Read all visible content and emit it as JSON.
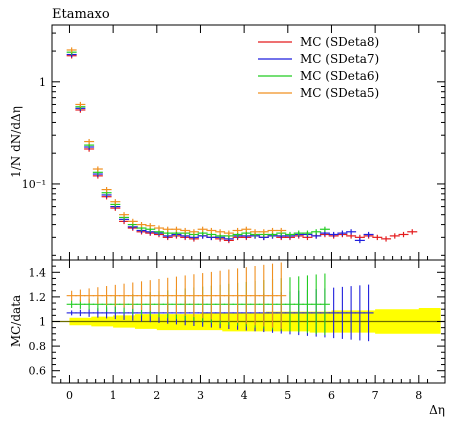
{
  "chart_data": [
    {
      "type": "scatter",
      "title": "Etamaxo",
      "ylabel": "1/N dN/dΔη",
      "yscale": "log",
      "xlim": [
        -0.4,
        8.6
      ],
      "ylim": [
        0.018,
        3.6
      ],
      "y_ticks": [
        {
          "value": 0.1,
          "label": "10⁻¹"
        },
        {
          "value": 1,
          "label": "1"
        }
      ],
      "legend_position": "top-right",
      "series": [
        {
          "name": "MC (SDeta8)",
          "color": "#e41a1c",
          "x": [
            0.05,
            0.25,
            0.45,
            0.65,
            0.85,
            1.05,
            1.25,
            1.45,
            1.65,
            1.85,
            2.05,
            2.25,
            2.45,
            2.65,
            2.85,
            3.05,
            3.25,
            3.45,
            3.65,
            3.85,
            4.05,
            4.25,
            4.45,
            4.65,
            4.85,
            5.05,
            5.25,
            5.45,
            5.65,
            5.85,
            6.05,
            6.25,
            6.45,
            6.65,
            6.85,
            7.05,
            7.25,
            7.45,
            7.65,
            7.85
          ],
          "y": [
            1.8,
            0.53,
            0.22,
            0.12,
            0.075,
            0.058,
            0.043,
            0.037,
            0.034,
            0.033,
            0.032,
            0.03,
            0.031,
            0.03,
            0.029,
            0.031,
            0.03,
            0.029,
            0.028,
            0.03,
            0.03,
            0.031,
            0.03,
            0.031,
            0.03,
            0.03,
            0.031,
            0.03,
            0.031,
            0.032,
            0.031,
            0.032,
            0.031,
            0.03,
            0.031,
            0.03,
            0.029,
            0.031,
            0.032,
            0.034
          ]
        },
        {
          "name": "MC (SDeta7)",
          "color": "#1f1fdd",
          "x": [
            0.05,
            0.25,
            0.45,
            0.65,
            0.85,
            1.05,
            1.25,
            1.45,
            1.65,
            1.85,
            2.05,
            2.25,
            2.45,
            2.65,
            2.85,
            3.05,
            3.25,
            3.45,
            3.65,
            3.85,
            4.05,
            4.25,
            4.45,
            4.65,
            4.85,
            5.05,
            5.25,
            5.45,
            5.65,
            5.85,
            6.05,
            6.25,
            6.45,
            6.65,
            6.85
          ],
          "y": [
            1.85,
            0.55,
            0.23,
            0.125,
            0.078,
            0.06,
            0.045,
            0.038,
            0.035,
            0.034,
            0.033,
            0.031,
            0.032,
            0.031,
            0.03,
            0.031,
            0.03,
            0.03,
            0.029,
            0.031,
            0.031,
            0.031,
            0.03,
            0.031,
            0.031,
            0.031,
            0.032,
            0.032,
            0.031,
            0.033,
            0.032,
            0.033,
            0.034,
            0.028,
            0.032
          ]
        },
        {
          "name": "MC (SDeta6)",
          "color": "#22cc22",
          "x": [
            0.05,
            0.25,
            0.45,
            0.65,
            0.85,
            1.05,
            1.25,
            1.45,
            1.65,
            1.85,
            2.05,
            2.25,
            2.45,
            2.65,
            2.85,
            3.05,
            3.25,
            3.45,
            3.65,
            3.85,
            4.05,
            4.25,
            4.45,
            4.65,
            4.85,
            5.05,
            5.25,
            5.45,
            5.65,
            5.85
          ],
          "y": [
            1.95,
            0.57,
            0.24,
            0.13,
            0.082,
            0.063,
            0.047,
            0.04,
            0.037,
            0.036,
            0.034,
            0.033,
            0.033,
            0.033,
            0.032,
            0.033,
            0.032,
            0.031,
            0.031,
            0.032,
            0.033,
            0.032,
            0.032,
            0.032,
            0.033,
            0.032,
            0.033,
            0.033,
            0.034,
            0.036
          ]
        },
        {
          "name": "MC (SDeta5)",
          "color": "#f09020",
          "x": [
            0.05,
            0.25,
            0.45,
            0.65,
            0.85,
            1.05,
            1.25,
            1.45,
            1.65,
            1.85,
            2.05,
            2.25,
            2.45,
            2.65,
            2.85,
            3.05,
            3.25,
            3.45,
            3.65,
            3.85,
            4.05,
            4.25,
            4.45,
            4.65,
            4.85
          ],
          "y": [
            2.05,
            0.6,
            0.26,
            0.14,
            0.088,
            0.067,
            0.05,
            0.043,
            0.04,
            0.039,
            0.037,
            0.036,
            0.036,
            0.035,
            0.034,
            0.036,
            0.035,
            0.034,
            0.033,
            0.035,
            0.036,
            0.034,
            0.034,
            0.035,
            0.035
          ]
        }
      ]
    },
    {
      "type": "scatter",
      "ylabel": "MC/data",
      "xlabel": "Δη",
      "xlim": [
        -0.4,
        8.6
      ],
      "ylim": [
        0.5,
        1.5
      ],
      "x_ticks": [
        0,
        1,
        2,
        3,
        4,
        5,
        6,
        7,
        8
      ],
      "y_ticks": [
        0.6,
        0.8,
        1,
        1.2,
        1.4
      ],
      "data_band": {
        "color": "#ffff00",
        "x": [
          0.0,
          0.5,
          1.0,
          1.5,
          2.0,
          2.5,
          3.0,
          3.5,
          4.0,
          4.5,
          5.0,
          5.5,
          6.0,
          6.5,
          7.0,
          7.5,
          8.0
        ],
        "lower": [
          0.97,
          0.96,
          0.95,
          0.94,
          0.93,
          0.93,
          0.93,
          0.92,
          0.92,
          0.92,
          0.92,
          0.91,
          0.91,
          0.91,
          0.9,
          0.9,
          0.9
        ],
        "upper": [
          1.03,
          1.04,
          1.05,
          1.06,
          1.06,
          1.06,
          1.07,
          1.07,
          1.07,
          1.08,
          1.08,
          1.08,
          1.09,
          1.09,
          1.1,
          1.1,
          1.11
        ]
      },
      "series": [
        {
          "name": "MC (SDeta8)",
          "color": "#e41a1c",
          "x_start": 0.05,
          "x_step": 0.2,
          "count": 0,
          "value": 1.0,
          "err": 0.1
        },
        {
          "name": "MC (SDeta7)",
          "color": "#1f1fdd",
          "x_start": 0.05,
          "x_step": 0.2,
          "count": 35,
          "value": 1.07,
          "err_start": 0.02,
          "err_end": 0.23
        },
        {
          "name": "MC (SDeta6)",
          "color": "#22cc22",
          "x_start": 0.05,
          "x_step": 0.2,
          "count": 30,
          "value": 1.14,
          "err_start": 0.03,
          "err_end": 0.25
        },
        {
          "name": "MC (SDeta5)",
          "color": "#f09020",
          "x_start": 0.05,
          "x_step": 0.2,
          "count": 25,
          "value": 1.21,
          "err_start": 0.04,
          "err_end": 0.27
        }
      ]
    }
  ]
}
